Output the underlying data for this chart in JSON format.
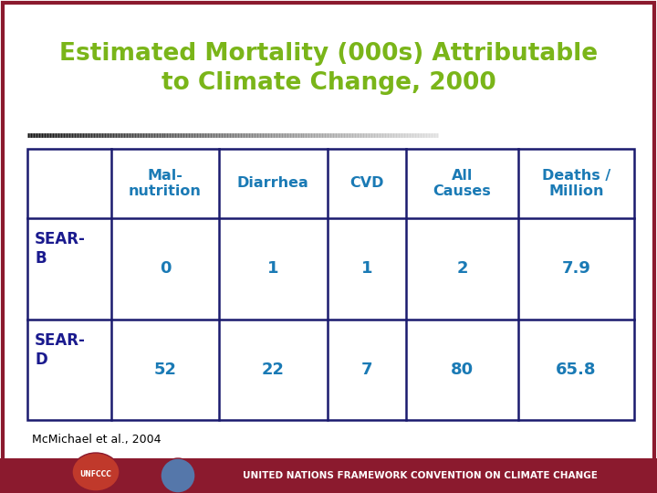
{
  "title_line1": "Estimated Mortality (000s) Attributable",
  "title_line2": "to Climate Change, 2000",
  "title_color": "#7ab519",
  "bg_color": "#ffffff",
  "outer_border_color": "#8b1a2e",
  "table_border_color": "#1a1a6e",
  "col_headers": [
    "Mal-\nnutrition",
    "Diarrhea",
    "CVD",
    "All\nCauses",
    "Deaths /\nMillion"
  ],
  "row_headers": [
    "SEAR-\nB",
    "SEAR-\nD"
  ],
  "data": [
    [
      "0",
      "1",
      "1",
      "2",
      "7.9"
    ],
    [
      "52",
      "22",
      "7",
      "80",
      "65.8"
    ]
  ],
  "cell_text_color": "#1a7ab5",
  "header_text_color": "#1a7ab5",
  "row_header_color": "#1a1a8e",
  "footer_text": "McMichael et al., 2004",
  "footer_text_color": "#000000",
  "bottom_bar_text": "UNITED NATIONS FRAMEWORK CONVENTION ON CLIMATE CHANGE",
  "bottom_bar_color": "#8b1a2e",
  "bottom_bar_text_color": "#ffffff"
}
